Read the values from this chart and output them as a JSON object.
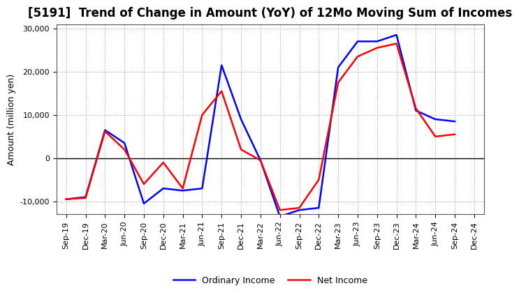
{
  "title": "[5191]  Trend of Change in Amount (YoY) of 12Mo Moving Sum of Incomes",
  "ylabel": "Amount (million yen)",
  "x_labels": [
    "Sep-19",
    "Dec-19",
    "Mar-20",
    "Jun-20",
    "Sep-20",
    "Dec-20",
    "Mar-21",
    "Jun-21",
    "Sep-21",
    "Dec-21",
    "Mar-22",
    "Jun-22",
    "Sep-22",
    "Dec-22",
    "Mar-23",
    "Jun-23",
    "Sep-23",
    "Dec-23",
    "Mar-24",
    "Jun-24",
    "Sep-24",
    "Dec-24"
  ],
  "ordinary_income": [
    -9500,
    -9000,
    6500,
    3500,
    -10500,
    -7000,
    -7500,
    -7000,
    21500,
    9000,
    -500,
    -13500,
    -12000,
    -11500,
    21000,
    27000,
    27000,
    28500,
    11000,
    9000,
    8500,
    null
  ],
  "net_income": [
    -9500,
    -9200,
    6200,
    2000,
    -6000,
    -1000,
    -7000,
    10000,
    15500,
    2000,
    -500,
    -12000,
    -11500,
    -5000,
    17500,
    23500,
    25500,
    26500,
    11500,
    5000,
    5500,
    null
  ],
  "ordinary_income_color": "#0000ff",
  "net_income_color": "#ff0000",
  "ylim": [
    -13000,
    31000
  ],
  "yticks": [
    -10000,
    0,
    10000,
    20000,
    30000
  ],
  "background_color": "#ffffff",
  "grid_color": "#999999",
  "line_width": 1.8,
  "legend_ordinary": "Ordinary Income",
  "legend_net": "Net Income",
  "title_fontsize": 12,
  "ylabel_fontsize": 9,
  "tick_fontsize": 8
}
